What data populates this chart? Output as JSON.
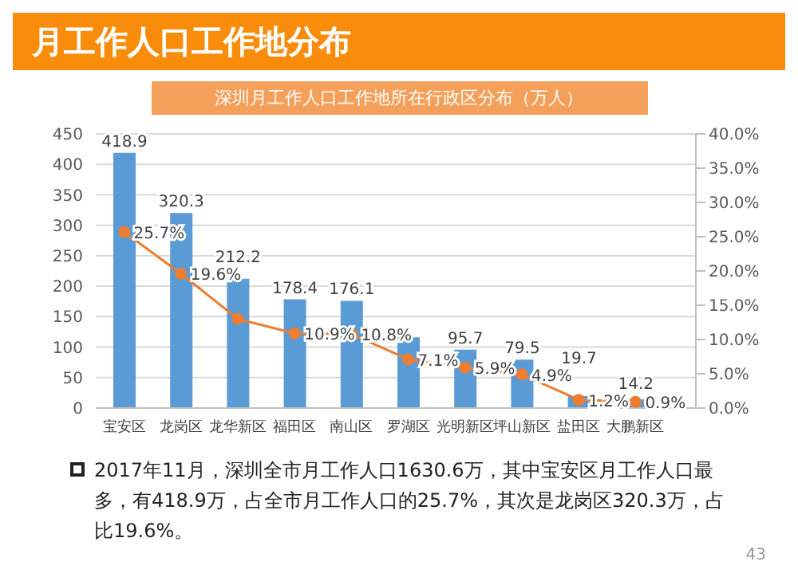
{
  "chart_data": {
    "type": "bar",
    "title": "月工作人口工作地分布",
    "subtitle": "深圳月工作人口工作地所在行政区分布（万人）",
    "categories": [
      "宝安区",
      "龙岗区",
      "龙华新区",
      "福田区",
      "南山区",
      "罗湖区",
      "光明新区",
      "坪山新区",
      "盐田区",
      "大鹏新区"
    ],
    "series": [
      {
        "color": "#5b9bd5",
        "values": [
          418.9,
          320.3,
          212.2,
          178.4,
          176.1,
          116,
          95.7,
          79.5,
          19.7,
          14.2
        ],
        "value_labels": [
          "418.9",
          "320.3",
          "212.2",
          "178.4",
          "176.1",
          null,
          "95.7",
          "79.5",
          "19.7",
          "14.2"
        ]
      },
      {
        "type": "line",
        "axis": "y2",
        "color": "#ed7d31",
        "values": [
          25.7,
          19.6,
          13.0,
          10.9,
          10.8,
          7.1,
          5.9,
          4.9,
          1.2,
          0.9
        ],
        "value_labels": [
          "25.7%",
          "19.6%",
          null,
          "10.9%",
          "10.8%",
          "7.1%",
          "5.9%",
          "4.9%",
          "1.2%",
          "0.9%"
        ]
      }
    ],
    "ylim": [
      0,
      450
    ],
    "yticks": [
      0,
      50,
      100,
      150,
      200,
      250,
      300,
      350,
      400,
      450
    ],
    "y2lim": [
      0,
      40
    ],
    "y2ticks": [
      {
        "value": 0,
        "label": "0.0%"
      },
      {
        "value": 5,
        "label": "5.0%"
      },
      {
        "value": 10,
        "label": "10.0%"
      },
      {
        "value": 15,
        "label": "15.0%"
      },
      {
        "value": 20,
        "label": "20.0%"
      },
      {
        "value": 25,
        "label": "25.0%"
      },
      {
        "value": 30,
        "label": "30.0%"
      },
      {
        "value": 35,
        "label": "35.0%"
      },
      {
        "value": 40,
        "label": "40.0%"
      }
    ],
    "grid": "y",
    "legend": false,
    "marker": "circle",
    "annotations": [
      "2017年11月，深圳全市月工作人口1630.6万，其中宝安区月工作人口最多，有418.9万，占全市月工作人口的25.7%，其次是龙岗区320.3万，占比19.6%。",
      "43"
    ]
  }
}
